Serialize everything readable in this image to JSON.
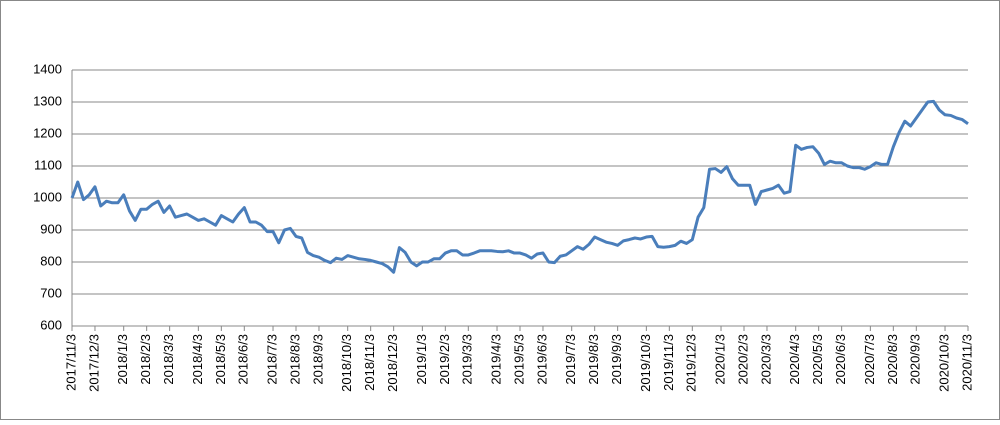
{
  "chart_data": {
    "type": "line",
    "categories": [
      "2017/11/3",
      null,
      null,
      null,
      "2017/12/3",
      null,
      null,
      null,
      null,
      "2018/1/3",
      null,
      null,
      null,
      "2018/2/3",
      null,
      null,
      null,
      "2018/3/3",
      null,
      null,
      null,
      null,
      "2018/4/3",
      null,
      null,
      null,
      "2018/5/3",
      null,
      null,
      null,
      "2018/6/3",
      null,
      null,
      null,
      null,
      "2018/7/3",
      null,
      null,
      null,
      "2018/8/3",
      null,
      null,
      null,
      "2018/9/3",
      null,
      null,
      null,
      null,
      "2018/10/3",
      null,
      null,
      null,
      "2018/11/3",
      null,
      null,
      null,
      "2018/12/3",
      null,
      null,
      null,
      null,
      "2019/1/3",
      null,
      null,
      null,
      "2019/2/3",
      null,
      null,
      null,
      "2019/3/3",
      null,
      null,
      null,
      null,
      "2019/4/3",
      null,
      null,
      null,
      "2019/5/3",
      null,
      null,
      null,
      "2019/6/3",
      null,
      null,
      null,
      null,
      "2019/7/3",
      null,
      null,
      null,
      "2019/8/3",
      null,
      null,
      null,
      "2019/9/3",
      null,
      null,
      null,
      null,
      "2019/10/3",
      null,
      null,
      null,
      "2019/11/3",
      null,
      null,
      null,
      "2019/12/3",
      null,
      null,
      null,
      null,
      "2020/1/3",
      null,
      null,
      null,
      "2020/2/3",
      null,
      null,
      null,
      "2020/3/3",
      null,
      null,
      null,
      null,
      "2020/4/3",
      null,
      null,
      null,
      "2020/5/3",
      null,
      null,
      null,
      "2020/6/3",
      null,
      null,
      null,
      null,
      "2020/7/3",
      null,
      null,
      null,
      "2020/8/3",
      null,
      null,
      null,
      "2020/9/3",
      null,
      null,
      null,
      null,
      "2020/10/3",
      null,
      null,
      null,
      "2020/11/3"
    ],
    "values": [
      1000,
      1050,
      995,
      1010,
      1035,
      975,
      990,
      985,
      985,
      1010,
      960,
      930,
      965,
      965,
      980,
      990,
      955,
      975,
      940,
      945,
      950,
      940,
      930,
      935,
      925,
      915,
      945,
      935,
      925,
      950,
      970,
      925,
      925,
      915,
      895,
      895,
      860,
      900,
      905,
      880,
      875,
      830,
      820,
      815,
      805,
      798,
      812,
      808,
      820,
      815,
      810,
      808,
      805,
      800,
      795,
      785,
      768,
      845,
      830,
      800,
      788,
      800,
      800,
      810,
      810,
      828,
      835,
      835,
      822,
      822,
      828,
      835,
      835,
      835,
      833,
      832,
      835,
      828,
      828,
      822,
      812,
      825,
      828,
      800,
      798,
      818,
      822,
      835,
      848,
      840,
      855,
      878,
      870,
      862,
      858,
      852,
      866,
      870,
      875,
      872,
      878,
      880,
      848,
      846,
      848,
      852,
      865,
      858,
      870,
      940,
      970,
      1090,
      1092,
      1080,
      1098,
      1060,
      1040,
      1040,
      1040,
      980,
      1020,
      1025,
      1030,
      1040,
      1015,
      1020,
      1165,
      1152,
      1158,
      1160,
      1140,
      1105,
      1115,
      1110,
      1110,
      1100,
      1095,
      1095,
      1090,
      1098,
      1110,
      1105,
      1105,
      1160,
      1205,
      1240,
      1225,
      1250,
      1275,
      1300,
      1302,
      1275,
      1260,
      1258,
      1250,
      1245,
      1232
    ],
    "color": "#4a7ebb",
    "ylim": [
      600,
      1400
    ],
    "yticks": [
      600,
      700,
      800,
      900,
      1000,
      1100,
      1200,
      1300,
      1400
    ],
    "grid": true
  }
}
